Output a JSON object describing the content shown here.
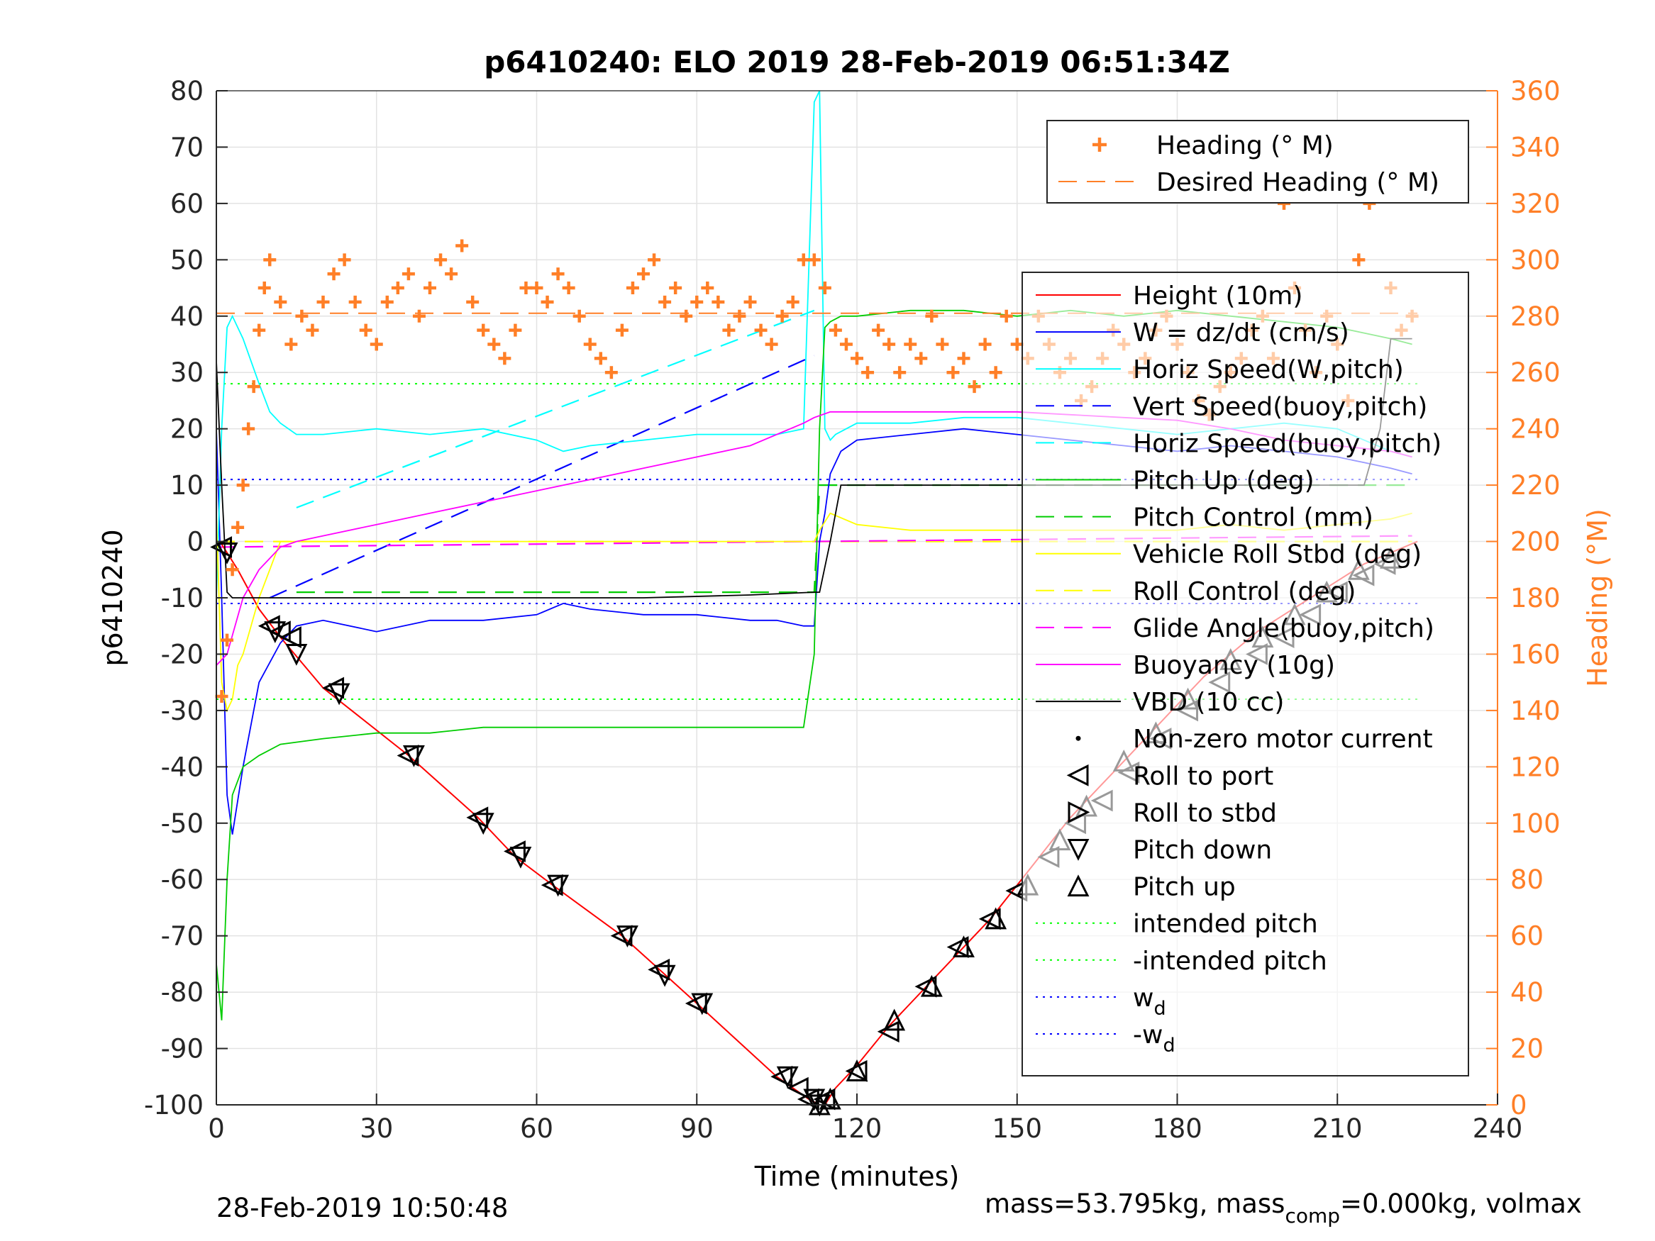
{
  "chart_data": {
    "type": "line",
    "title": "p6410240: ELO 2019 28-Feb-2019 06:51:34Z",
    "xlabel": "Time (minutes)",
    "ylabel": "p6410240",
    "ylabel_right": "Heading (°M)",
    "xlim": [
      0,
      240
    ],
    "ylim": [
      -100,
      80
    ],
    "ylim_right": [
      0,
      360
    ],
    "x_ticks": [
      0,
      30,
      60,
      90,
      120,
      150,
      180,
      210,
      240
    ],
    "y_ticks": [
      -100,
      -90,
      -80,
      -70,
      -60,
      -50,
      -40,
      -30,
      -20,
      -10,
      0,
      10,
      20,
      30,
      40,
      50,
      60,
      70,
      80
    ],
    "y_ticks_right": [
      0,
      20,
      40,
      60,
      80,
      100,
      120,
      140,
      160,
      180,
      200,
      220,
      240,
      260,
      280,
      300,
      320,
      340,
      360
    ],
    "grid": true,
    "legend_placement": "right",
    "colors": {
      "heading": "#ff7f27",
      "height": "#ff0000",
      "w": "#0000ff",
      "horiz_speed": "#00ffff",
      "pitch": "#00cc00",
      "roll": "#ffff00",
      "glide": "#ff00ff",
      "vbd": "#000000",
      "right_axis": "#ff7f27"
    },
    "series": [
      {
        "name": "Height (10m)",
        "key": "height",
        "style": "line",
        "color": "#ff0000",
        "x": [
          0,
          1,
          2,
          4,
          8,
          12,
          20,
          36,
          49,
          56,
          63,
          76,
          83,
          90,
          105,
          108,
          111,
          113,
          114,
          116,
          120,
          126,
          130,
          135,
          140,
          145,
          150,
          155,
          160,
          165,
          170,
          175,
          180,
          185,
          190,
          195,
          200,
          205,
          210,
          215,
          220,
          225
        ],
        "values": [
          0,
          -0.5,
          -2,
          -5,
          -12,
          -17,
          -26,
          -38,
          -49,
          -56,
          -61,
          -70,
          -76,
          -82,
          -95,
          -97,
          -99,
          -100,
          -100,
          -97,
          -93,
          -86,
          -82,
          -77,
          -72,
          -67,
          -61,
          -55,
          -49,
          -44,
          -39,
          -34,
          -29,
          -24,
          -20,
          -16,
          -13,
          -10,
          -7,
          -4,
          -2,
          0
        ]
      },
      {
        "name": "W = dz/dt (cm/s)",
        "key": "w",
        "style": "line",
        "color": "#0000ff",
        "x": [
          0,
          1,
          2,
          3,
          5,
          8,
          12,
          15,
          20,
          30,
          40,
          50,
          60,
          65,
          70,
          80,
          90,
          100,
          105,
          110,
          112,
          113,
          114,
          115,
          117,
          120,
          130,
          140,
          150,
          160,
          170,
          180,
          190,
          200,
          210,
          215,
          220,
          224
        ],
        "values": [
          20,
          -10,
          -45,
          -52,
          -40,
          -25,
          -18,
          -15,
          -14,
          -16,
          -14,
          -14,
          -13,
          -11,
          -12,
          -13,
          -13,
          -14,
          -14,
          -15,
          -15,
          0,
          5,
          12,
          16,
          18,
          19,
          20,
          19,
          18,
          17,
          16,
          17,
          16,
          15,
          14,
          13,
          12
        ]
      },
      {
        "name": "Horiz Speed(W,pitch)",
        "key": "horiz_speed",
        "style": "line",
        "color": "#00ffff",
        "x": [
          0,
          1,
          2,
          3,
          5,
          8,
          10,
          12,
          15,
          20,
          30,
          40,
          50,
          60,
          65,
          70,
          80,
          90,
          100,
          105,
          110,
          112,
          113,
          114,
          115,
          116,
          120,
          130,
          140,
          150,
          160,
          170,
          180,
          190,
          200,
          210,
          215,
          220,
          224
        ],
        "values": [
          -10,
          20,
          38,
          40,
          36,
          28,
          23,
          21,
          19,
          19,
          20,
          19,
          20,
          18,
          16,
          17,
          18,
          19,
          19,
          19,
          20,
          78,
          80,
          20,
          18,
          19,
          21,
          21,
          22,
          22,
          21,
          20,
          19,
          20,
          21,
          20,
          18,
          16,
          15
        ]
      },
      {
        "name": "Pitch Up (deg)",
        "key": "pitch_up",
        "style": "line",
        "color": "#00cc00",
        "x": [
          0,
          1,
          2,
          3,
          5,
          8,
          12,
          20,
          30,
          40,
          50,
          60,
          70,
          80,
          90,
          100,
          110,
          112,
          113,
          114,
          115,
          117,
          120,
          130,
          140,
          150,
          160,
          170,
          180,
          190,
          200,
          210,
          215,
          220,
          224
        ],
        "values": [
          -75,
          -85,
          -60,
          -45,
          -40,
          -38,
          -36,
          -35,
          -34,
          -34,
          -33,
          -33,
          -33,
          -33,
          -33,
          -33,
          -33,
          -20,
          20,
          38,
          39,
          40,
          40,
          41,
          41,
          40,
          41,
          40,
          41,
          40,
          39,
          38,
          37,
          36,
          35
        ]
      },
      {
        "name": "Vehicle Roll Stbd (deg)",
        "key": "roll",
        "style": "line",
        "color": "#ffff00",
        "x": [
          0,
          1,
          2,
          3,
          4,
          5,
          8,
          10,
          12,
          15,
          18,
          20,
          30,
          40,
          50,
          60,
          70,
          80,
          90,
          100,
          110,
          112,
          113,
          115,
          120,
          130,
          140,
          150,
          160,
          170,
          180,
          190,
          200,
          210,
          220,
          224
        ],
        "values": [
          5,
          -25,
          -30,
          -28,
          -22,
          -20,
          -10,
          -5,
          0,
          0,
          0,
          0,
          0,
          0,
          0,
          0,
          0,
          0,
          0,
          0,
          0,
          0,
          2,
          5,
          3,
          2,
          2,
          2,
          2,
          2,
          2,
          3,
          2,
          3,
          4,
          5
        ]
      },
      {
        "name": "Buoyancy (10g)",
        "key": "buoyancy",
        "style": "line",
        "color": "#ff00ff",
        "x": [
          0,
          2,
          5,
          8,
          12,
          15,
          20,
          30,
          40,
          50,
          60,
          70,
          80,
          90,
          100,
          110,
          112,
          115,
          120,
          130,
          140,
          150,
          160,
          170,
          180,
          190,
          200,
          210,
          220,
          224
        ],
        "values": [
          -22,
          -20,
          -10,
          -5,
          -1,
          0,
          1,
          3,
          5,
          7,
          9,
          11,
          13,
          15,
          17,
          21,
          22,
          23,
          23,
          23,
          23,
          23,
          22.5,
          22,
          21.5,
          20,
          18,
          17,
          16,
          15
        ]
      },
      {
        "name": "VBD (10 cc)",
        "key": "vbd",
        "style": "line",
        "color": "#000000",
        "x": [
          0,
          1,
          2,
          3,
          5,
          10,
          20,
          40,
          60,
          80,
          100,
          112,
          113,
          115,
          116,
          117,
          120,
          140,
          160,
          180,
          200,
          210,
          215,
          218,
          220,
          224
        ],
        "values": [
          32,
          10,
          -9,
          -10,
          -10,
          -10,
          -10,
          -10,
          -10,
          -10,
          -9.5,
          -9,
          -9,
          0,
          5,
          10,
          10,
          10,
          10,
          10,
          10,
          10,
          10,
          20,
          36,
          36
        ]
      },
      {
        "name": "Heading (° M)",
        "key": "heading",
        "style": "markers",
        "color": "#ff7f27",
        "axis": "right",
        "x": [
          1,
          2,
          3,
          4,
          5,
          6,
          7,
          8,
          9,
          10,
          12,
          14,
          16,
          18,
          20,
          22,
          24,
          26,
          28,
          30,
          32,
          34,
          36,
          38,
          40,
          42,
          44,
          46,
          48,
          50,
          52,
          54,
          56,
          58,
          60,
          62,
          64,
          66,
          68,
          70,
          72,
          74,
          76,
          78,
          80,
          82,
          84,
          86,
          88,
          90,
          92,
          94,
          96,
          98,
          100,
          102,
          104,
          106,
          108,
          110,
          112,
          114,
          116,
          118,
          120,
          122,
          124,
          126,
          128,
          130,
          132,
          134,
          136,
          138,
          140,
          142,
          144,
          146,
          148,
          150,
          152,
          154,
          156,
          158,
          160,
          162,
          164,
          166,
          168,
          170,
          172,
          174,
          176,
          178,
          180,
          182,
          184,
          186,
          188,
          190,
          192,
          194,
          196,
          198,
          200,
          202,
          204,
          206,
          208,
          210,
          212,
          214,
          216,
          218,
          220,
          222,
          224
        ],
        "values": [
          145,
          165,
          190,
          205,
          220,
          240,
          255,
          275,
          290,
          300,
          285,
          270,
          280,
          275,
          285,
          295,
          300,
          285,
          275,
          270,
          285,
          290,
          295,
          280,
          290,
          300,
          295,
          305,
          285,
          275,
          270,
          265,
          275,
          290,
          290,
          285,
          295,
          290,
          280,
          270,
          265,
          260,
          275,
          290,
          295,
          300,
          285,
          290,
          280,
          285,
          290,
          285,
          275,
          280,
          285,
          275,
          270,
          280,
          285,
          300,
          300,
          290,
          275,
          270,
          265,
          260,
          275,
          270,
          260,
          270,
          265,
          280,
          270,
          260,
          265,
          255,
          270,
          260,
          280,
          270,
          265,
          280,
          270,
          260,
          265,
          250,
          255,
          265,
          275,
          270,
          260,
          265,
          275,
          280,
          270,
          260,
          250,
          245,
          255,
          260,
          265,
          275,
          280,
          265,
          320,
          290,
          275,
          260,
          280,
          270,
          250,
          300,
          320,
          340,
          290,
          275,
          280
        ]
      },
      {
        "name": "Desired Heading (° M)",
        "key": "desired_heading",
        "style": "dashed",
        "color": "#ff7f27",
        "axis": "right",
        "x": [
          0,
          225
        ],
        "values": [
          281,
          281
        ]
      }
    ],
    "reference_lines": [
      {
        "name": "intended pitch",
        "value": 28,
        "color": "#00ff00",
        "style": "dotted"
      },
      {
        "name": "-intended pitch",
        "value": -28,
        "color": "#00ff00",
        "style": "dotted"
      },
      {
        "name": "w_d",
        "value": 11,
        "color": "#0000ff",
        "style": "dotted"
      },
      {
        "name": "-w_d",
        "value": -11,
        "color": "#0000ff",
        "style": "dotted"
      }
    ],
    "dashed_lines": [
      {
        "name": "Vert Speed(buoy,pitch)",
        "color": "#0000ff",
        "x": [
          10,
          112
        ],
        "values": [
          -10,
          33
        ]
      },
      {
        "name": "Horiz Speed(buoy,pitch)",
        "color": "#00ffff",
        "x": [
          15,
          112
        ],
        "values": [
          6,
          41
        ]
      },
      {
        "name": "Pitch Control (mm)",
        "color": "#00cc00",
        "x": [
          15,
          112,
          113,
          224
        ],
        "values": [
          -9,
          -9,
          10,
          10
        ]
      },
      {
        "name": "Roll Control (deg)",
        "color": "#ffff00",
        "x": [
          0,
          224
        ],
        "values": [
          0,
          0
        ]
      },
      {
        "name": "Glide Angle(buoy,pitch)",
        "color": "#ff00ff",
        "x": [
          0,
          224
        ],
        "values": [
          -1,
          1
        ]
      }
    ],
    "markers": [
      {
        "name": "Roll to port",
        "symbol": "triangle-left",
        "x": [
          1,
          10,
          12,
          14,
          22,
          36,
          49,
          56,
          63,
          76,
          83,
          90,
          106,
          109,
          111,
          114,
          120,
          126,
          133,
          139,
          145,
          150,
          156,
          161,
          166,
          171,
          177,
          182,
          188,
          195,
          200,
          205,
          210,
          215,
          219
        ],
        "values": [
          -1,
          -15,
          -16,
          -17,
          -26,
          -38,
          -49,
          -55,
          -61,
          -70,
          -76,
          -82,
          -95,
          -97,
          -99,
          -99,
          -94,
          -87,
          -79,
          -72,
          -67,
          -62,
          -56,
          -50,
          -46,
          -41,
          -35,
          -30,
          -25,
          -20,
          -17,
          -13,
          -9,
          -6,
          -4
        ]
      },
      {
        "name": "Pitch down",
        "symbol": "triangle-down",
        "x": [
          2,
          11,
          15,
          23,
          37,
          50,
          57,
          64,
          77,
          84,
          91,
          107,
          112,
          113
        ],
        "values": [
          -2,
          -16,
          -20,
          -27,
          -38,
          -50,
          -56,
          -61,
          -70,
          -77,
          -82,
          -95,
          -99,
          -100
        ]
      },
      {
        "name": "Pitch up",
        "symbol": "triangle-up",
        "x": [
          113,
          115,
          120,
          127,
          134,
          140,
          146,
          152,
          158,
          163,
          170,
          176,
          182,
          190,
          196,
          202,
          208,
          214,
          220
        ],
        "values": [
          -100,
          -99,
          -94,
          -85,
          -79,
          -72,
          -67,
          -61,
          -53,
          -47,
          -39,
          -34,
          -28,
          -21,
          -17,
          -13,
          -9,
          -5,
          -3
        ]
      }
    ],
    "legend1": [
      "Heading (° M)",
      "Desired Heading (° M)"
    ],
    "legend2": [
      "Height (10m)",
      "W = dz/dt (cm/s)",
      "Horiz Speed(W,pitch)",
      "Vert Speed(buoy,pitch)",
      "Horiz Speed(buoy,pitch)",
      "Pitch Up (deg)",
      "Pitch Control (mm)",
      "Vehicle Roll Stbd (deg)",
      "Roll Control (deg)",
      "Glide Angle(buoy,pitch)",
      "Buoyancy (10g)",
      "VBD (10 cc)",
      "Non-zero motor current",
      "Roll to port",
      "Roll to stbd",
      "Pitch down",
      "Pitch up",
      "intended pitch",
      "-intended pitch",
      "w",
      "-w"
    ],
    "legend2_subscripts": {
      "w": "d",
      "-w": "d"
    }
  },
  "footer": {
    "timestamp": "28-Feb-2019 10:50:48",
    "mass_text_a": "mass=53.795kg, mass",
    "mass_sub": "comp",
    "mass_text_b": "=0.000kg, volmax"
  }
}
